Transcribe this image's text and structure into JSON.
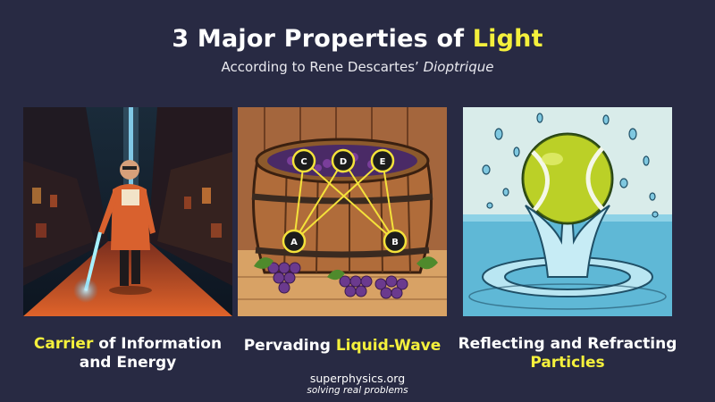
{
  "title": {
    "prefix": "3 Major Properties of ",
    "highlight": "Light"
  },
  "subtitle": {
    "prefix": "According to Rene Descartes’ ",
    "italic": "Dioptrique"
  },
  "panels": [
    {
      "caption_highlight": "Carrier",
      "caption_rest_1": " of Information",
      "caption_line2": "and Energy"
    },
    {
      "caption_prefix": "Pervading ",
      "caption_highlight": "Liquid-Wave",
      "node_labels": [
        "C",
        "D",
        "E",
        "A",
        "B"
      ]
    },
    {
      "caption_line1": "Reflecting and Refracting",
      "caption_highlight": "Particles"
    }
  ],
  "footer": {
    "site": "superphysics.org",
    "tagline": "solving real problems"
  },
  "colors": {
    "background": "#282a43",
    "highlight": "#f4f03c"
  }
}
